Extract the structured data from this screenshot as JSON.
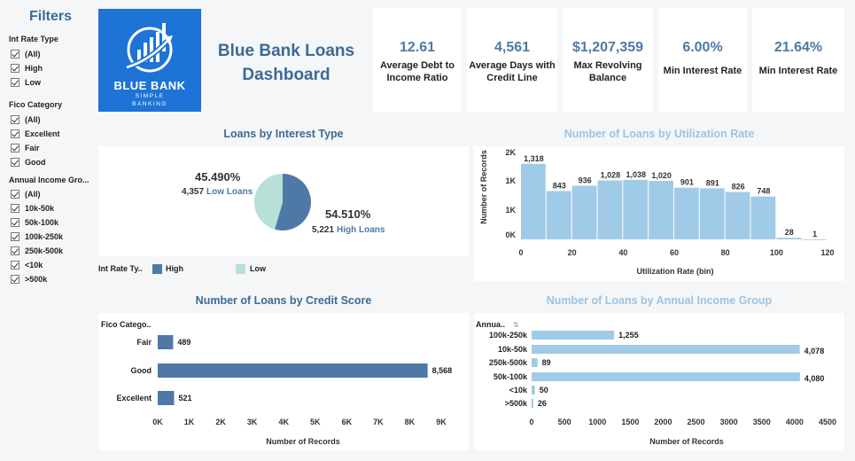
{
  "filters": {
    "title": "Filters",
    "groups": [
      {
        "title": "Int Rate Type",
        "items": [
          "(All)",
          "High",
          "Low"
        ]
      },
      {
        "title": "Fico Category",
        "items": [
          "(All)",
          "Excellent",
          "Fair",
          "Good"
        ]
      },
      {
        "title": "Annual Income Gro...",
        "items": [
          "(All)",
          "10k-50k",
          "50k-100k",
          "100k-250k",
          "250k-500k",
          "<10k",
          ">500k"
        ]
      }
    ]
  },
  "logo": {
    "name": "BLUE BANK",
    "sub1": "SIMPLE",
    "sub2": "BANKING"
  },
  "dashboard": {
    "title_line1": "Blue Bank Loans",
    "title_line2": "Dashboard"
  },
  "kpis": [
    {
      "value": "12.61",
      "label1": "Average Debt to",
      "label2": "Income Ratio"
    },
    {
      "value": "4,561",
      "label1": "Average Days with",
      "label2": "Credit Line"
    },
    {
      "value": "$1,207,359",
      "label1": "Max Revolving",
      "label2": "Balance"
    },
    {
      "value": "6.00%",
      "label1": "Min Interest Rate",
      "label2": ""
    },
    {
      "value": "21.64%",
      "label1": "Min Interest Rate",
      "label2": ""
    }
  ],
  "colors": {
    "dark_blue": "#4e79a7",
    "light_blue": "#a0cbe8",
    "teal": "#b7e0d8",
    "title_dark": "#3d6a94",
    "title_light": "#9fc3de"
  },
  "chart_data": [
    {
      "type": "pie",
      "title": "Loans by Interest Type",
      "legend_title": "Int Rate Ty..",
      "categories": [
        "High",
        "Low"
      ],
      "values": [
        5221,
        4357
      ],
      "percent_labels": [
        "54.510%",
        "45.490%"
      ],
      "count_labels": [
        "5,221",
        "4,357"
      ],
      "slice_labels": [
        "High Loans",
        "Low Loans"
      ]
    },
    {
      "type": "bar",
      "title": "Number of Loans by Utilization Rate",
      "xlabel": "Utilization Rate (bin)",
      "ylabel": "Number of Records",
      "x_bins": [
        0,
        10,
        20,
        30,
        40,
        50,
        60,
        70,
        80,
        90,
        100,
        110
      ],
      "values": [
        1318,
        843,
        936,
        1028,
        1038,
        1020,
        901,
        891,
        826,
        748,
        28,
        1
      ],
      "value_labels": [
        "1,318",
        "843",
        "936",
        "1,028",
        "1,038",
        "1,020",
        "901",
        "891",
        "826",
        "748",
        "28",
        "1"
      ],
      "x_ticks": [
        "0",
        "20",
        "40",
        "60",
        "80",
        "100",
        "120"
      ],
      "y_ticks": [
        "2K",
        "1K",
        "1K",
        "0K"
      ],
      "xlim": [
        0,
        120
      ],
      "ylim": [
        0,
        1500
      ]
    },
    {
      "type": "bar",
      "orientation": "horizontal",
      "title": "Number of Loans by Credit Score",
      "header": "Fico Catego..",
      "categories": [
        "Fair",
        "Good",
        "Excellent"
      ],
      "values": [
        489,
        8568,
        521
      ],
      "value_labels": [
        "489",
        "8,568",
        "521"
      ],
      "x_ticks": [
        "0K",
        "1K",
        "2K",
        "3K",
        "4K",
        "5K",
        "6K",
        "7K",
        "8K",
        "9K"
      ],
      "xlabel": "Number of Records",
      "xlim": [
        0,
        9000
      ]
    },
    {
      "type": "bar",
      "orientation": "horizontal",
      "title": "Number of Loans by Annual Income Group",
      "header": "Annua..",
      "categories": [
        "100k-250k",
        "10k-50k",
        "250k-500k",
        "50k-100k",
        "<10k",
        ">500k"
      ],
      "values": [
        1255,
        4078,
        89,
        4080,
        50,
        26
      ],
      "value_labels": [
        "1,255",
        "4,078",
        "89",
        "4,080",
        "50",
        "26"
      ],
      "x_ticks": [
        "0",
        "500",
        "1000",
        "1500",
        "2000",
        "2500",
        "3000",
        "3500",
        "4000",
        "4500"
      ],
      "xlabel": "Number of Records",
      "xlim": [
        0,
        4500
      ]
    }
  ]
}
